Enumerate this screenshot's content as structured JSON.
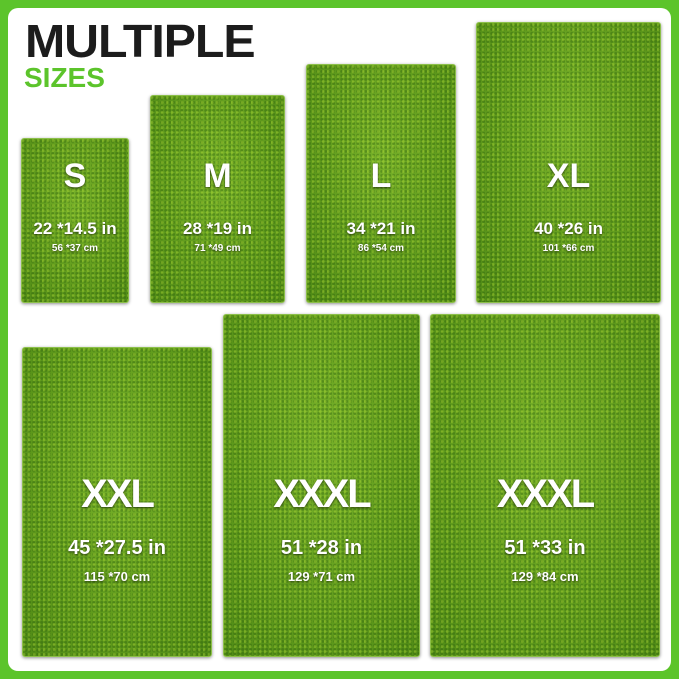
{
  "header": {
    "title": "MULTIPLE",
    "subtitle": "SIZES"
  },
  "colors": {
    "accent": "#5cc42b",
    "title": "#1c1c1c",
    "mat": "#5f9a1c"
  },
  "mats": [
    {
      "size": "S",
      "inches": "22 *14.5 in",
      "cm": "56 *37 cm"
    },
    {
      "size": "M",
      "inches": "28 *19 in",
      "cm": "71 *49 cm"
    },
    {
      "size": "L",
      "inches": "34 *21 in",
      "cm": "86 *54 cm"
    },
    {
      "size": "XL",
      "inches": "40 *26 in",
      "cm": "101 *66 cm"
    },
    {
      "size": "XXL",
      "inches": "45 *27.5 in",
      "cm": "115 *70 cm"
    },
    {
      "size": "XXXL",
      "inches": "51 *28 in",
      "cm": "129 *71 cm"
    },
    {
      "size": "XXXL",
      "inches": "51 *33 in",
      "cm": "129 *84 cm"
    }
  ]
}
